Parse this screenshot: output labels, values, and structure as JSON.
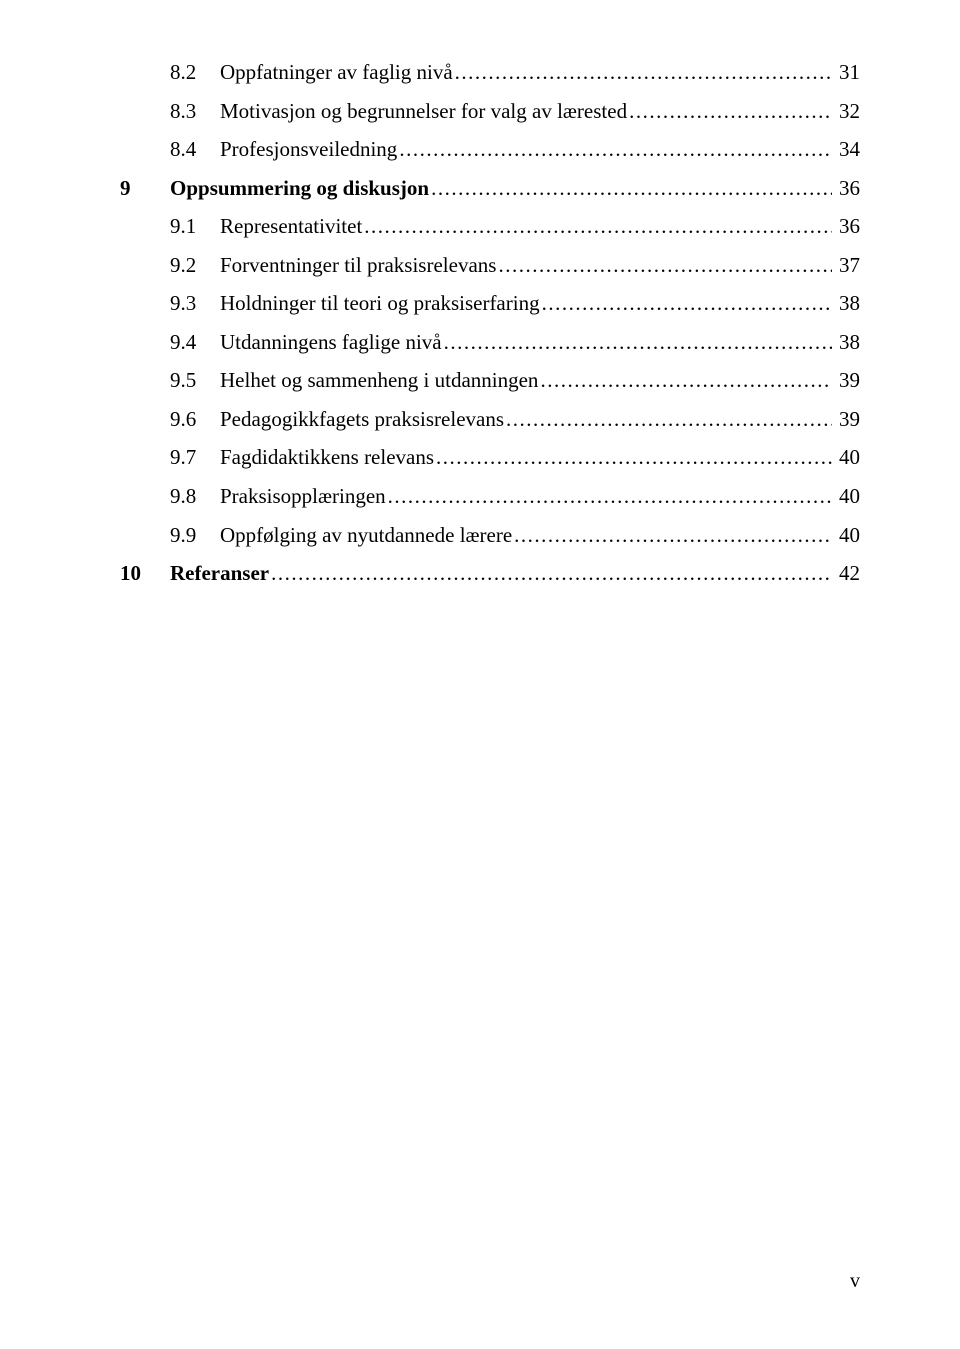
{
  "typography": {
    "font_family": "Times New Roman",
    "body_fontsize_pt": 12,
    "bold_weight": 700,
    "regular_weight": 400,
    "text_color": "#000000",
    "background_color": "#ffffff"
  },
  "page_number": "v",
  "toc": [
    {
      "level": 2,
      "num": "8.2",
      "title": "Oppfatninger av faglig nivå",
      "page": "31",
      "bold": false
    },
    {
      "level": 2,
      "num": "8.3",
      "title": "Motivasjon og begrunnelser for valg av lærested",
      "page": "32",
      "bold": false
    },
    {
      "level": 2,
      "num": "8.4",
      "title": "Profesjonsveiledning",
      "page": "34",
      "bold": false
    },
    {
      "level": 1,
      "num": "9",
      "title": "Oppsummering og diskusjon",
      "page": "36",
      "bold": true
    },
    {
      "level": 2,
      "num": "9.1",
      "title": "Representativitet",
      "page": "36",
      "bold": false
    },
    {
      "level": 2,
      "num": "9.2",
      "title": "Forventninger til praksisrelevans",
      "page": "37",
      "bold": false
    },
    {
      "level": 2,
      "num": "9.3",
      "title": "Holdninger til teori og praksiserfaring",
      "page": "38",
      "bold": false
    },
    {
      "level": 2,
      "num": "9.4",
      "title": "Utdanningens faglige nivå",
      "page": "38",
      "bold": false
    },
    {
      "level": 2,
      "num": "9.5",
      "title": "Helhet og sammenheng i utdanningen",
      "page": "39",
      "bold": false
    },
    {
      "level": 2,
      "num": "9.6",
      "title": "Pedagogikkfagets praksisrelevans",
      "page": "39",
      "bold": false
    },
    {
      "level": 2,
      "num": "9.7",
      "title": "Fagdidaktikkens relevans",
      "page": "40",
      "bold": false
    },
    {
      "level": 2,
      "num": "9.8",
      "title": "Praksisopplæringen",
      "page": "40",
      "bold": false
    },
    {
      "level": 2,
      "num": "9.9",
      "title": "Oppfølging av nyutdannede lærere",
      "page": "40",
      "bold": false
    },
    {
      "level": 1,
      "num": "10",
      "title": "Referanser",
      "page": "42",
      "bold": true
    }
  ]
}
